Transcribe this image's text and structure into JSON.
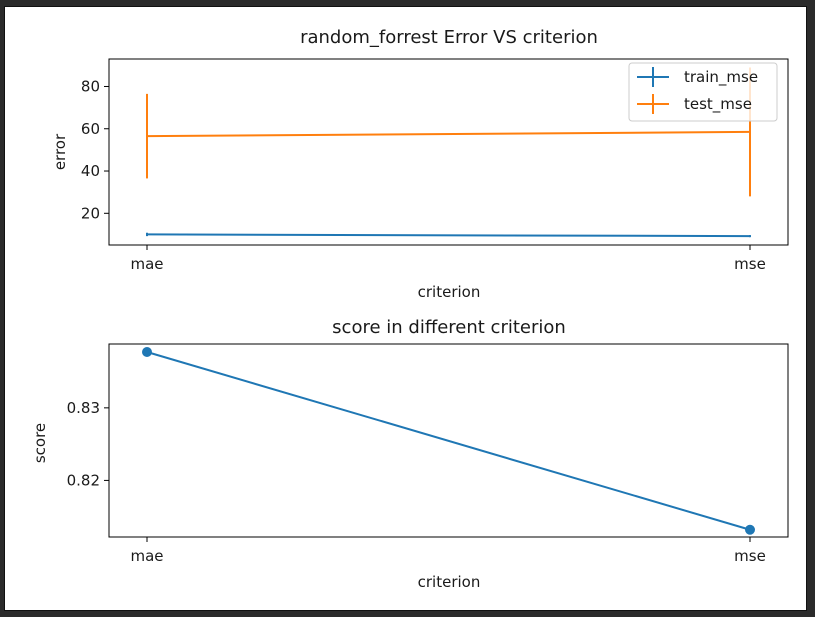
{
  "chart_data": [
    {
      "type": "line",
      "title": "random_forrest Error VS criterion",
      "xlabel": "criterion",
      "ylabel": "error",
      "categories": [
        "mae",
        "mse"
      ],
      "ylim": [
        5,
        93
      ],
      "yticks": [
        20,
        40,
        60,
        80
      ],
      "legend": {
        "placement": "top-right"
      },
      "series": [
        {
          "name": "train_mse",
          "color": "#1f77b4",
          "values": [
            10.0,
            9.2
          ],
          "error": [
            0.8,
            0.5
          ]
        },
        {
          "name": "test_mse",
          "color": "#ff7f0e",
          "values": [
            56.5,
            58.5
          ],
          "error": [
            20.0,
            30.5
          ]
        }
      ]
    },
    {
      "type": "line",
      "title": "score in different criterion",
      "xlabel": "criterion",
      "ylabel": "score",
      "categories": [
        "mae",
        "mse"
      ],
      "ylim": [
        0.8122,
        0.8388
      ],
      "yticks": [
        0.82,
        0.83
      ],
      "ytick_labels": [
        "0.82",
        "0.83"
      ],
      "series": [
        {
          "color": "#1f77b4",
          "values": [
            0.8377,
            0.8132
          ],
          "marker": "circle"
        }
      ]
    }
  ]
}
